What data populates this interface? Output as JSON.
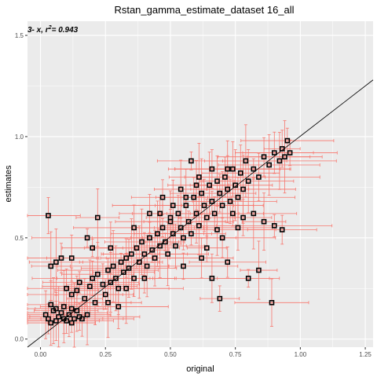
{
  "chart_data": {
    "type": "scatter",
    "title": "Rstan_gamma_estimate_dataset 16_all",
    "xlabel": "original",
    "ylabel": "estimates",
    "annotation": "= 0.943",
    "annotation_prefix": "3- x,  r",
    "annotation_sup": "2",
    "xlim": [
      -0.05,
      1.28
    ],
    "ylim": [
      -0.04,
      1.57
    ],
    "x_ticks": [
      0.0,
      0.25,
      0.5,
      0.75,
      1.0,
      1.25
    ],
    "x_tick_labels": [
      "0.00",
      "0.25",
      "0.50",
      "0.75",
      "1.00",
      "1.25"
    ],
    "y_ticks": [
      0.0,
      0.5,
      1.0,
      1.5
    ],
    "y_tick_labels": [
      "0.0",
      "0.5",
      "1.0",
      "1.5"
    ],
    "reference_line": {
      "slope": 1,
      "intercept": 0
    },
    "grid": true,
    "colors": {
      "panel": "#ebebeb",
      "grid": "#ffffff",
      "errorbar": "#f8766d",
      "point": "#000000",
      "line": "#000000"
    },
    "points": [
      [
        0.02,
        0.12
      ],
      [
        0.03,
        0.1
      ],
      [
        0.04,
        0.08
      ],
      [
        0.05,
        0.14
      ],
      [
        0.06,
        0.09
      ],
      [
        0.07,
        0.11
      ],
      [
        0.08,
        0.13
      ],
      [
        0.09,
        0.1
      ],
      [
        0.1,
        0.09
      ],
      [
        0.11,
        0.12
      ],
      [
        0.12,
        0.08
      ],
      [
        0.13,
        0.1
      ],
      [
        0.14,
        0.14
      ],
      [
        0.15,
        0.11
      ],
      [
        0.04,
        0.17
      ],
      [
        0.06,
        0.15
      ],
      [
        0.09,
        0.16
      ],
      [
        0.12,
        0.15
      ],
      [
        0.16,
        0.1
      ],
      [
        0.18,
        0.12
      ],
      [
        0.03,
        0.61
      ],
      [
        0.04,
        0.36
      ],
      [
        0.06,
        0.38
      ],
      [
        0.08,
        0.4
      ],
      [
        0.1,
        0.25
      ],
      [
        0.12,
        0.22
      ],
      [
        0.14,
        0.24
      ],
      [
        0.15,
        0.28
      ],
      [
        0.17,
        0.2
      ],
      [
        0.19,
        0.26
      ],
      [
        0.2,
        0.3
      ],
      [
        0.21,
        0.18
      ],
      [
        0.22,
        0.32
      ],
      [
        0.24,
        0.27
      ],
      [
        0.25,
        0.22
      ],
      [
        0.26,
        0.34
      ],
      [
        0.27,
        0.28
      ],
      [
        0.28,
        0.36
      ],
      [
        0.29,
        0.3
      ],
      [
        0.3,
        0.25
      ],
      [
        0.31,
        0.38
      ],
      [
        0.32,
        0.33
      ],
      [
        0.33,
        0.4
      ],
      [
        0.34,
        0.35
      ],
      [
        0.35,
        0.42
      ],
      [
        0.36,
        0.3
      ],
      [
        0.37,
        0.45
      ],
      [
        0.38,
        0.38
      ],
      [
        0.39,
        0.48
      ],
      [
        0.4,
        0.42
      ],
      [
        0.41,
        0.36
      ],
      [
        0.42,
        0.5
      ],
      [
        0.43,
        0.44
      ],
      [
        0.44,
        0.4
      ],
      [
        0.45,
        0.52
      ],
      [
        0.46,
        0.46
      ],
      [
        0.47,
        0.55
      ],
      [
        0.48,
        0.48
      ],
      [
        0.49,
        0.42
      ],
      [
        0.5,
        0.58
      ],
      [
        0.51,
        0.52
      ],
      [
        0.52,
        0.46
      ],
      [
        0.53,
        0.62
      ],
      [
        0.54,
        0.55
      ],
      [
        0.55,
        0.5
      ],
      [
        0.56,
        0.66
      ],
      [
        0.57,
        0.58
      ],
      [
        0.58,
        0.52
      ],
      [
        0.59,
        0.7
      ],
      [
        0.6,
        0.62
      ],
      [
        0.61,
        0.56
      ],
      [
        0.62,
        0.72
      ],
      [
        0.63,
        0.66
      ],
      [
        0.64,
        0.6
      ],
      [
        0.65,
        0.76
      ],
      [
        0.66,
        0.68
      ],
      [
        0.67,
        0.62
      ],
      [
        0.68,
        0.78
      ],
      [
        0.69,
        0.72
      ],
      [
        0.7,
        0.66
      ],
      [
        0.71,
        0.8
      ],
      [
        0.72,
        0.74
      ],
      [
        0.73,
        0.68
      ],
      [
        0.74,
        0.84
      ],
      [
        0.75,
        0.76
      ],
      [
        0.76,
        0.7
      ],
      [
        0.77,
        0.82
      ],
      [
        0.78,
        0.74
      ],
      [
        0.79,
        0.88
      ],
      [
        0.8,
        0.78
      ],
      [
        0.82,
        0.84
      ],
      [
        0.84,
        0.8
      ],
      [
        0.86,
        0.9
      ],
      [
        0.88,
        0.86
      ],
      [
        0.9,
        0.92
      ],
      [
        0.92,
        0.88
      ],
      [
        0.93,
        0.94
      ],
      [
        0.94,
        0.9
      ],
      [
        0.95,
        0.98
      ],
      [
        0.96,
        0.92
      ],
      [
        0.12,
        0.4
      ],
      [
        0.2,
        0.45
      ],
      [
        0.36,
        0.55
      ],
      [
        0.42,
        0.62
      ],
      [
        0.5,
        0.6
      ],
      [
        0.54,
        0.74
      ],
      [
        0.61,
        0.8
      ],
      [
        0.66,
        0.84
      ],
      [
        0.55,
        0.36
      ],
      [
        0.62,
        0.4
      ],
      [
        0.66,
        0.3
      ],
      [
        0.69,
        0.2
      ],
      [
        0.72,
        0.38
      ],
      [
        0.76,
        0.55
      ],
      [
        0.8,
        0.3
      ],
      [
        0.84,
        0.34
      ],
      [
        0.89,
        0.18
      ],
      [
        0.9,
        0.56
      ],
      [
        0.93,
        0.54
      ],
      [
        0.58,
        0.88
      ],
      [
        0.22,
        0.6
      ],
      [
        0.18,
        0.5
      ],
      [
        0.46,
        0.62
      ],
      [
        0.4,
        0.3
      ],
      [
        0.3,
        0.16
      ],
      [
        0.27,
        0.45
      ],
      [
        0.33,
        0.25
      ],
      [
        0.26,
        0.18
      ],
      [
        0.7,
        0.5
      ],
      [
        0.64,
        0.45
      ],
      [
        0.86,
        0.58
      ],
      [
        0.82,
        0.62
      ],
      [
        0.78,
        0.6
      ],
      [
        0.74,
        0.62
      ],
      [
        0.68,
        0.54
      ],
      [
        0.72,
        0.84
      ],
      [
        0.6,
        0.76
      ],
      [
        0.56,
        0.7
      ],
      [
        0.51,
        0.66
      ],
      [
        0.47,
        0.7
      ]
    ]
  }
}
